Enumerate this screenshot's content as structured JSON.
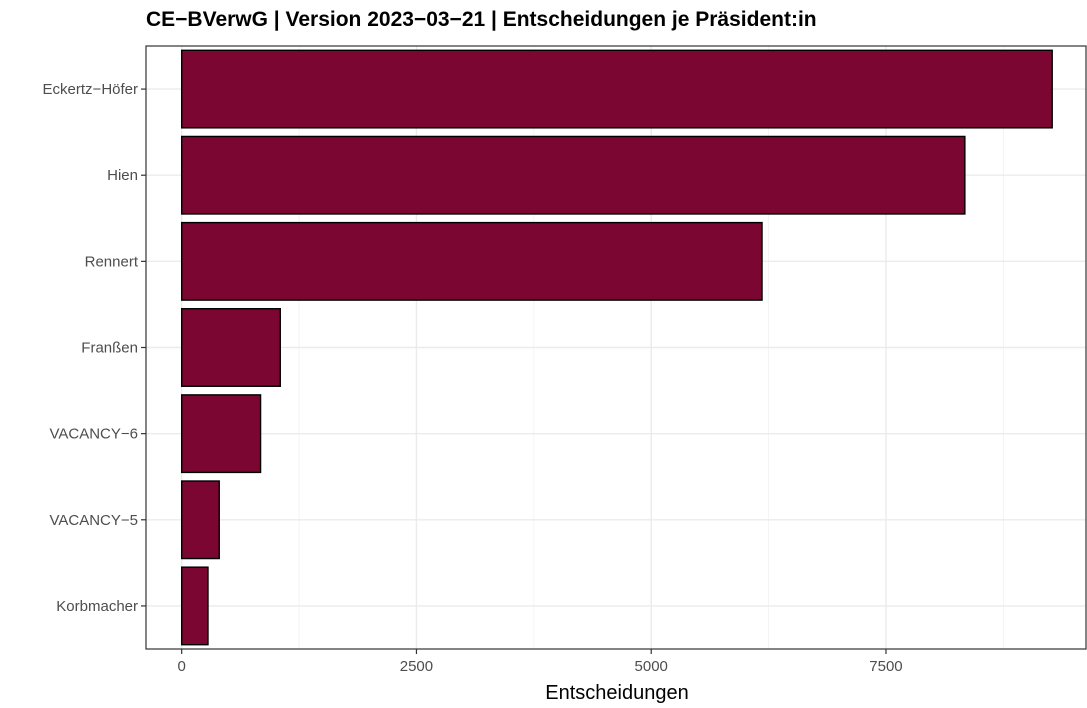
{
  "chart_data": {
    "type": "bar",
    "orientation": "horizontal",
    "title": "CE−BVerwG | Version 2023−03−21 | Entscheidungen je Präsident:in",
    "xlabel": "Entscheidungen",
    "ylabel": "",
    "categories": [
      "Eckertz−Höfer",
      "Hien",
      "Rennert",
      "Franßen",
      "VACANCY−6",
      "VACANCY−5",
      "Korbmacher"
    ],
    "values": [
      9270,
      8340,
      6180,
      1050,
      840,
      400,
      280
    ],
    "xlim": [
      -380,
      9630
    ],
    "xticks": [
      0,
      2500,
      5000,
      7500
    ],
    "xtick_labels": [
      "0",
      "2500",
      "5000",
      "7500"
    ],
    "bar_color": "#7b0632",
    "bar_outline": "#000000",
    "grid": true,
    "legend": "none"
  }
}
